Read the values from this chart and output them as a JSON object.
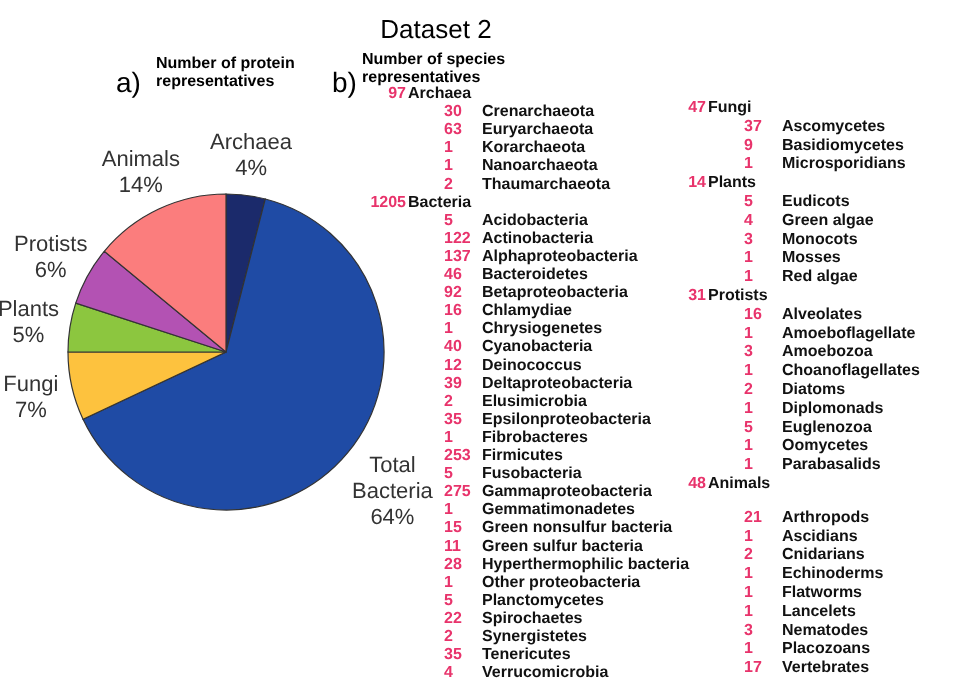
{
  "chart_data": [
    {
      "type": "pie",
      "title": "Dataset 2",
      "subtitle": "Number of protein representatives",
      "annotations": [
        "a)"
      ],
      "categories": [
        "Archaea",
        "Total Bacteria",
        "Fungi",
        "Plants",
        "Protists",
        "Animals"
      ],
      "values": [
        4,
        64,
        7,
        5,
        6,
        14
      ],
      "value_labels": [
        "4%",
        "64%",
        "7%",
        "5%",
        "6%",
        "14%"
      ],
      "colors": [
        "#1b2a6b",
        "#1f4ba5",
        "#fdc23e",
        "#8cc63f",
        "#b352b3",
        "#fb7d7d"
      ],
      "legend": false
    },
    {
      "type": "other",
      "title": "Archaea",
      "annotations": [
        "b)",
        "Number of species representatives"
      ],
      "totals": [
        "97"
      ],
      "color": "#e8336b",
      "data_labels": true,
      "categories": [
        "Crenarchaeota",
        "Euryarchaeota",
        "Korarchaeota",
        "Nanoarchaeota",
        "Thaumarchaeota"
      ],
      "values": [
        30,
        63,
        1,
        1,
        2
      ]
    },
    {
      "type": "other",
      "title": "Bacteria",
      "totals": [
        "1205"
      ],
      "color": "#e8336b",
      "data_labels": true,
      "categories": [
        "Acidobacteria",
        "Actinobacteria",
        "Alphaproteobacteria",
        "Bacteroidetes",
        "Betaproteobacteria",
        "Chlamydiae",
        "Chrysiogenetes",
        "Cyanobacteria",
        "Deinococcus",
        "Deltaproteobacteria",
        "Elusimicrobia",
        "Epsilonproteobacteria",
        "Fibrobacteres",
        "Firmicutes",
        "Fusobacteria",
        "Gammaproteobacteria",
        "Gemmatimonadetes",
        "Green nonsulfur bacteria",
        "Green sulfur bacteria",
        "Hyperthermophilic bacteria",
        "Other proteobacteria",
        "Planctomycetes",
        "Spirochaetes",
        "Synergistetes",
        "Tenericutes",
        "Verrucomicrobia"
      ],
      "values": [
        5,
        122,
        137,
        46,
        92,
        16,
        1,
        40,
        12,
        39,
        2,
        35,
        1,
        253,
        5,
        275,
        1,
        15,
        11,
        28,
        1,
        5,
        22,
        2,
        35,
        4
      ]
    },
    {
      "type": "other",
      "title": "Fungi",
      "totals": [
        "47"
      ],
      "color": "#e8336b",
      "data_labels": true,
      "categories": [
        "Ascomycetes",
        "Basidiomycetes",
        "Microsporidians"
      ],
      "values": [
        37,
        9,
        1
      ]
    },
    {
      "type": "other",
      "title": "Plants",
      "totals": [
        "14"
      ],
      "color": "#e8336b",
      "data_labels": true,
      "categories": [
        "Eudicots",
        "Green algae",
        "Monocots",
        "Mosses",
        "Red algae"
      ],
      "values": [
        5,
        4,
        3,
        1,
        1
      ]
    },
    {
      "type": "other",
      "title": "Protists",
      "totals": [
        "31"
      ],
      "color": "#e8336b",
      "data_labels": true,
      "categories": [
        "Alveolates",
        "Amoeboflagellate",
        "Amoebozoa",
        "Choanoflagellates",
        "Diatoms",
        "Diplomonads",
        "Euglenozoa",
        "Oomycetes",
        "Parabasalids"
      ],
      "values": [
        16,
        1,
        3,
        1,
        2,
        1,
        5,
        1,
        1
      ]
    },
    {
      "type": "other",
      "title": "Animals",
      "totals": [
        "48"
      ],
      "color": "#e8336b",
      "data_labels": true,
      "categories": [
        "Arthropods",
        "Ascidians",
        "Cnidarians",
        "Echinoderms",
        "Flatworms",
        "Lancelets",
        "Nematodes",
        "Placozoans",
        "Vertebrates"
      ],
      "values": [
        21,
        1,
        2,
        1,
        1,
        1,
        3,
        1,
        17
      ]
    }
  ]
}
